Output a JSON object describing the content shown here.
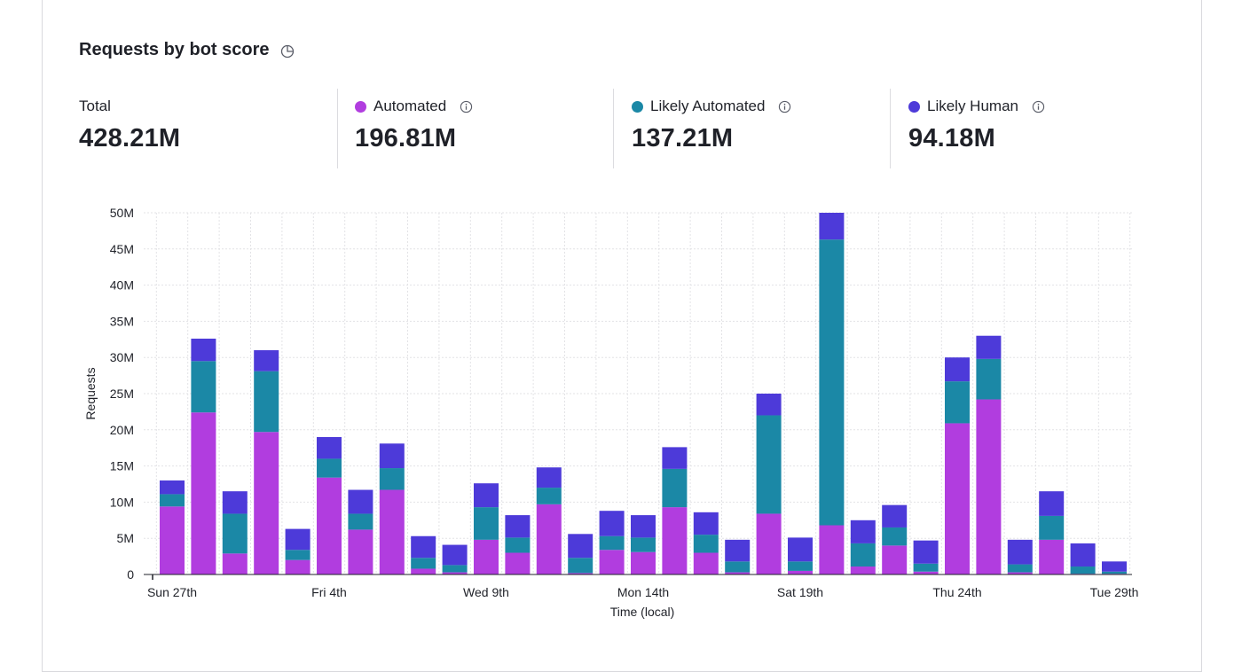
{
  "header": {
    "title": "Requests by bot score",
    "title_icon": "pie-clock-icon"
  },
  "stats": [
    {
      "label": "Total",
      "value": "428.21M",
      "color": null
    },
    {
      "label": "Automated",
      "value": "196.81M",
      "color": "#b13ddf"
    },
    {
      "label": "Likely Automated",
      "value": "137.21M",
      "color": "#1b88a6"
    },
    {
      "label": "Likely Human",
      "value": "94.18M",
      "color": "#4d3ad9"
    }
  ],
  "chart_data": {
    "type": "bar",
    "stacked": true,
    "xlabel": "Time (local)",
    "ylabel": "Requests",
    "ylim": [
      0,
      50
    ],
    "y_unit": "M",
    "y_ticks": [
      "0",
      "5M",
      "10M",
      "15M",
      "20M",
      "25M",
      "30M",
      "35M",
      "40M",
      "45M",
      "50M"
    ],
    "x_tick_labels": [
      {
        "index": 0,
        "label": "Sun 27th"
      },
      {
        "index": 5,
        "label": "Fri 4th"
      },
      {
        "index": 10,
        "label": "Wed 9th"
      },
      {
        "index": 15,
        "label": "Mon 14th"
      },
      {
        "index": 20,
        "label": "Sat 19th"
      },
      {
        "index": 25,
        "label": "Thu 24th"
      },
      {
        "index": 30,
        "label": "Tue 29th"
      }
    ],
    "grid": true,
    "series": [
      {
        "name": "Automated",
        "color": "#b13ddf",
        "values": [
          9.4,
          22.4,
          2.9,
          19.7,
          2.0,
          13.4,
          6.2,
          11.7,
          0.8,
          0.3,
          4.8,
          3.0,
          9.7,
          0.2,
          3.4,
          3.1,
          9.3,
          3.0,
          0.3,
          8.4,
          0.5,
          6.8,
          1.1,
          4.0,
          0.4,
          20.9,
          24.2,
          0.3,
          4.8,
          0.1,
          0.1
        ]
      },
      {
        "name": "Likely Automated",
        "color": "#1b88a6",
        "values": [
          1.7,
          7.1,
          5.5,
          8.4,
          1.4,
          2.6,
          2.2,
          3.0,
          1.5,
          1.0,
          4.5,
          2.1,
          2.3,
          2.1,
          1.9,
          2.0,
          5.3,
          2.5,
          1.5,
          13.6,
          1.3,
          39.5,
          3.2,
          2.5,
          1.1,
          5.8,
          5.6,
          1.1,
          3.3,
          1.0,
          0.3
        ]
      },
      {
        "name": "Likely Human",
        "color": "#4d3ad9",
        "values": [
          1.9,
          3.1,
          3.1,
          2.9,
          2.9,
          3.0,
          3.3,
          3.4,
          3.0,
          2.8,
          3.3,
          3.1,
          2.8,
          3.3,
          3.5,
          3.1,
          3.0,
          3.1,
          3.0,
          3.0,
          3.3,
          3.7,
          3.2,
          3.1,
          3.2,
          3.3,
          3.2,
          3.4,
          3.4,
          3.2,
          1.4
        ]
      }
    ]
  }
}
